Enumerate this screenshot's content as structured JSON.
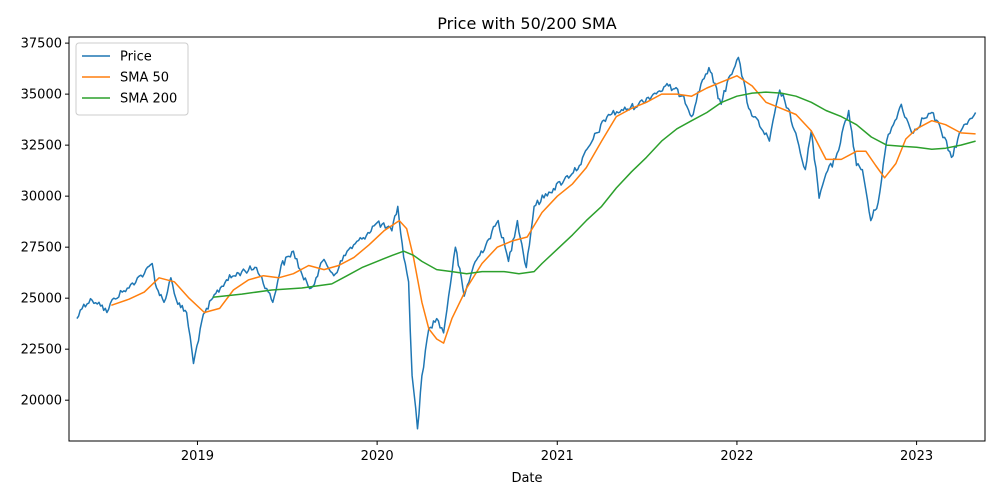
{
  "chart_data": {
    "type": "line",
    "title": "Price with 50/200 SMA",
    "xlabel": "Date",
    "ylabel": "",
    "xlim": [
      "2018-04-15",
      "2023-05-20"
    ],
    "ylim": [
      18000,
      37800
    ],
    "x_ticks": [
      "2019-01-01",
      "2020-01-01",
      "2021-01-01",
      "2022-01-01",
      "2023-01-01"
    ],
    "x_tick_labels": [
      "2019",
      "2020",
      "2021",
      "2022",
      "2023"
    ],
    "y_ticks": [
      20000,
      22500,
      25000,
      27500,
      30000,
      32500,
      35000,
      37500
    ],
    "y_tick_labels": [
      "20000",
      "22500",
      "25000",
      "27500",
      "30000",
      "32500",
      "35000",
      "37500"
    ],
    "legend_position": "upper-left",
    "grid": false,
    "series": [
      {
        "name": "Price",
        "color": "#1f77b4",
        "points": [
          [
            "2018-05-01",
            24000
          ],
          [
            "2018-05-15",
            24700
          ],
          [
            "2018-06-01",
            24900
          ],
          [
            "2018-06-15",
            24800
          ],
          [
            "2018-07-01",
            24300
          ],
          [
            "2018-07-15",
            25000
          ],
          [
            "2018-08-01",
            25300
          ],
          [
            "2018-08-15",
            25500
          ],
          [
            "2018-09-01",
            26000
          ],
          [
            "2018-09-15",
            26200
          ],
          [
            "2018-10-01",
            26700
          ],
          [
            "2018-10-10",
            25500
          ],
          [
            "2018-10-25",
            24800
          ],
          [
            "2018-11-08",
            26000
          ],
          [
            "2018-11-22",
            24700
          ],
          [
            "2018-12-10",
            24300
          ],
          [
            "2018-12-24",
            21800
          ],
          [
            "2019-01-10",
            23900
          ],
          [
            "2019-02-01",
            25000
          ],
          [
            "2019-03-01",
            25900
          ],
          [
            "2019-04-01",
            26300
          ],
          [
            "2019-05-01",
            26500
          ],
          [
            "2019-05-25",
            25300
          ],
          [
            "2019-06-03",
            24800
          ],
          [
            "2019-06-20",
            26600
          ],
          [
            "2019-07-15",
            27300
          ],
          [
            "2019-08-05",
            25900
          ],
          [
            "2019-08-20",
            25500
          ],
          [
            "2019-09-15",
            26900
          ],
          [
            "2019-10-05",
            26100
          ],
          [
            "2019-11-01",
            27300
          ],
          [
            "2019-12-01",
            27900
          ],
          [
            "2020-01-01",
            28700
          ],
          [
            "2020-01-31",
            28300
          ],
          [
            "2020-02-12",
            29500
          ],
          [
            "2020-02-24",
            27000
          ],
          [
            "2020-03-05",
            25800
          ],
          [
            "2020-03-12",
            21200
          ],
          [
            "2020-03-23",
            18600
          ],
          [
            "2020-04-01",
            21200
          ],
          [
            "2020-04-15",
            23500
          ],
          [
            "2020-05-01",
            24000
          ],
          [
            "2020-05-15",
            23300
          ],
          [
            "2020-06-08",
            27500
          ],
          [
            "2020-06-26",
            25100
          ],
          [
            "2020-07-15",
            26600
          ],
          [
            "2020-08-15",
            27900
          ],
          [
            "2020-09-03",
            28800
          ],
          [
            "2020-09-24",
            26800
          ],
          [
            "2020-10-12",
            28800
          ],
          [
            "2020-10-30",
            26500
          ],
          [
            "2020-11-15",
            29500
          ],
          [
            "2020-12-15",
            30200
          ],
          [
            "2021-01-15",
            30800
          ],
          [
            "2021-02-15",
            31500
          ],
          [
            "2021-03-15",
            32800
          ],
          [
            "2021-04-15",
            34000
          ],
          [
            "2021-05-15",
            34200
          ],
          [
            "2021-06-15",
            34500
          ],
          [
            "2021-07-15",
            35000
          ],
          [
            "2021-08-15",
            35400
          ],
          [
            "2021-09-15",
            34900
          ],
          [
            "2021-10-01",
            33900
          ],
          [
            "2021-10-20",
            35500
          ],
          [
            "2021-11-05",
            36300
          ],
          [
            "2021-11-30",
            34500
          ],
          [
            "2021-12-15",
            35800
          ],
          [
            "2022-01-04",
            36800
          ],
          [
            "2022-01-25",
            34300
          ],
          [
            "2022-02-23",
            33200
          ],
          [
            "2022-03-08",
            32700
          ],
          [
            "2022-03-29",
            35200
          ],
          [
            "2022-04-15",
            34300
          ],
          [
            "2022-05-10",
            32100
          ],
          [
            "2022-05-20",
            31300
          ],
          [
            "2022-06-01",
            33200
          ],
          [
            "2022-06-17",
            29900
          ],
          [
            "2022-07-01",
            31100
          ],
          [
            "2022-07-20",
            31800
          ],
          [
            "2022-08-16",
            34200
          ],
          [
            "2022-09-01",
            31500
          ],
          [
            "2022-09-13",
            31300
          ],
          [
            "2022-09-30",
            28800
          ],
          [
            "2022-10-15",
            29700
          ],
          [
            "2022-11-01",
            32700
          ],
          [
            "2022-11-15",
            33500
          ],
          [
            "2022-12-01",
            34500
          ],
          [
            "2022-12-22",
            33100
          ],
          [
            "2023-01-15",
            33800
          ],
          [
            "2023-02-01",
            34100
          ],
          [
            "2023-02-20",
            33200
          ],
          [
            "2023-03-13",
            31900
          ],
          [
            "2023-04-01",
            33200
          ],
          [
            "2023-04-20",
            33800
          ],
          [
            "2023-05-01",
            34100
          ]
        ]
      },
      {
        "name": "SMA 50",
        "color": "#ff7f0e",
        "points": [
          [
            "2018-07-10",
            24650
          ],
          [
            "2018-08-15",
            24950
          ],
          [
            "2018-09-15",
            25300
          ],
          [
            "2018-10-15",
            26000
          ],
          [
            "2018-11-15",
            25800
          ],
          [
            "2018-12-15",
            25000
          ],
          [
            "2019-01-15",
            24300
          ],
          [
            "2019-02-15",
            24500
          ],
          [
            "2019-03-15",
            25400
          ],
          [
            "2019-04-15",
            25900
          ],
          [
            "2019-05-15",
            26100
          ],
          [
            "2019-06-15",
            26000
          ],
          [
            "2019-07-15",
            26200
          ],
          [
            "2019-08-15",
            26600
          ],
          [
            "2019-09-15",
            26400
          ],
          [
            "2019-10-15",
            26600
          ],
          [
            "2019-11-15",
            27000
          ],
          [
            "2019-12-15",
            27600
          ],
          [
            "2020-01-15",
            28300
          ],
          [
            "2020-02-15",
            28800
          ],
          [
            "2020-03-01",
            28400
          ],
          [
            "2020-03-15",
            27000
          ],
          [
            "2020-04-01",
            24800
          ],
          [
            "2020-04-15",
            23500
          ],
          [
            "2020-05-01",
            23000
          ],
          [
            "2020-05-15",
            22800
          ],
          [
            "2020-06-01",
            24000
          ],
          [
            "2020-07-01",
            25500
          ],
          [
            "2020-08-01",
            26700
          ],
          [
            "2020-09-01",
            27500
          ],
          [
            "2020-10-01",
            27800
          ],
          [
            "2020-11-01",
            28000
          ],
          [
            "2020-12-01",
            29200
          ],
          [
            "2021-01-01",
            30000
          ],
          [
            "2021-02-01",
            30600
          ],
          [
            "2021-03-01",
            31400
          ],
          [
            "2021-04-01",
            32700
          ],
          [
            "2021-05-01",
            33900
          ],
          [
            "2021-06-01",
            34300
          ],
          [
            "2021-07-01",
            34600
          ],
          [
            "2021-08-01",
            35000
          ],
          [
            "2021-09-01",
            35000
          ],
          [
            "2021-10-01",
            34900
          ],
          [
            "2021-11-01",
            35300
          ],
          [
            "2021-12-01",
            35600
          ],
          [
            "2022-01-01",
            35900
          ],
          [
            "2022-02-01",
            35400
          ],
          [
            "2022-03-01",
            34600
          ],
          [
            "2022-04-01",
            34300
          ],
          [
            "2022-05-01",
            34000
          ],
          [
            "2022-06-01",
            33200
          ],
          [
            "2022-07-01",
            31800
          ],
          [
            "2022-08-01",
            31800
          ],
          [
            "2022-09-01",
            32200
          ],
          [
            "2022-09-20",
            32200
          ],
          [
            "2022-10-10",
            31500
          ],
          [
            "2022-10-28",
            30900
          ],
          [
            "2022-11-20",
            31600
          ],
          [
            "2022-12-10",
            32800
          ],
          [
            "2023-01-01",
            33300
          ],
          [
            "2023-02-01",
            33700
          ],
          [
            "2023-03-01",
            33500
          ],
          [
            "2023-04-01",
            33100
          ],
          [
            "2023-05-01",
            33050
          ]
        ]
      },
      {
        "name": "SMA 200",
        "color": "#2ca02c",
        "points": [
          [
            "2019-02-01",
            25050
          ],
          [
            "2019-04-01",
            25200
          ],
          [
            "2019-06-01",
            25400
          ],
          [
            "2019-08-01",
            25500
          ],
          [
            "2019-10-01",
            25700
          ],
          [
            "2019-11-01",
            26100
          ],
          [
            "2019-12-01",
            26500
          ],
          [
            "2020-01-01",
            26800
          ],
          [
            "2020-02-01",
            27100
          ],
          [
            "2020-02-24",
            27300
          ],
          [
            "2020-03-15",
            27100
          ],
          [
            "2020-04-01",
            26800
          ],
          [
            "2020-05-01",
            26400
          ],
          [
            "2020-06-01",
            26300
          ],
          [
            "2020-07-01",
            26200
          ],
          [
            "2020-08-01",
            26300
          ],
          [
            "2020-09-15",
            26300
          ],
          [
            "2020-10-15",
            26200
          ],
          [
            "2020-11-15",
            26300
          ],
          [
            "2020-12-01",
            26700
          ],
          [
            "2021-01-01",
            27400
          ],
          [
            "2021-02-01",
            28100
          ],
          [
            "2021-03-01",
            28800
          ],
          [
            "2021-04-01",
            29500
          ],
          [
            "2021-05-01",
            30400
          ],
          [
            "2021-06-01",
            31200
          ],
          [
            "2021-07-01",
            31900
          ],
          [
            "2021-08-01",
            32700
          ],
          [
            "2021-09-01",
            33300
          ],
          [
            "2021-10-01",
            33700
          ],
          [
            "2021-11-01",
            34100
          ],
          [
            "2021-12-01",
            34600
          ],
          [
            "2022-01-01",
            34900
          ],
          [
            "2022-02-01",
            35050
          ],
          [
            "2022-03-01",
            35100
          ],
          [
            "2022-04-01",
            35050
          ],
          [
            "2022-05-01",
            34900
          ],
          [
            "2022-06-01",
            34600
          ],
          [
            "2022-07-01",
            34200
          ],
          [
            "2022-08-01",
            33900
          ],
          [
            "2022-09-01",
            33500
          ],
          [
            "2022-10-01",
            32900
          ],
          [
            "2022-11-01",
            32500
          ],
          [
            "2022-12-01",
            32450
          ],
          [
            "2023-01-01",
            32400
          ],
          [
            "2023-02-01",
            32300
          ],
          [
            "2023-03-01",
            32350
          ],
          [
            "2023-04-01",
            32500
          ],
          [
            "2023-05-01",
            32700
          ]
        ]
      }
    ]
  }
}
